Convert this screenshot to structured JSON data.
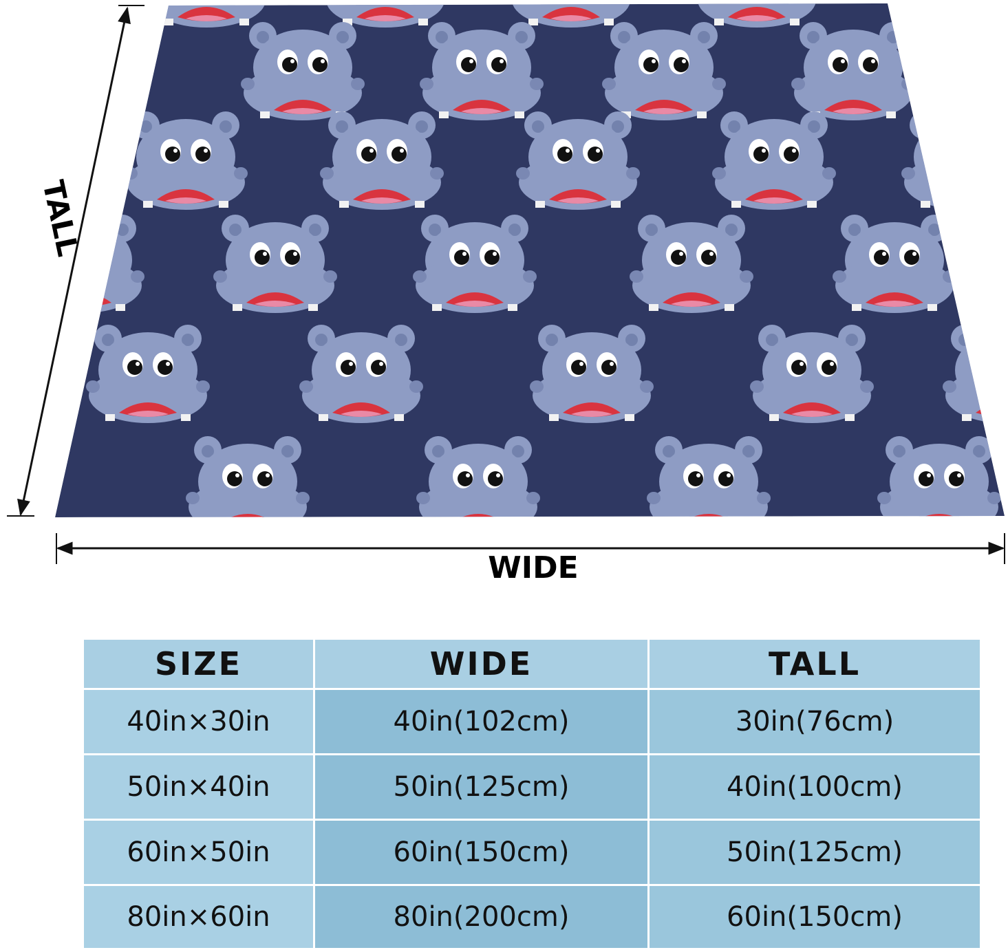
{
  "diagram": {
    "tall_label": "TALL",
    "wide_label": "WIDE"
  },
  "table": {
    "header": [
      "SIZE",
      "WIDE",
      "TALL"
    ],
    "rows": [
      [
        "40in×30in",
        "40in(102cm)",
        "30in(76cm)"
      ],
      [
        "50in×40in",
        "50in(125cm)",
        "40in(100cm)"
      ],
      [
        "60in×50in",
        "60in(150cm)",
        "50in(125cm)"
      ],
      [
        "80in×60in",
        "80in(200cm)",
        "60in(150cm)"
      ]
    ]
  }
}
